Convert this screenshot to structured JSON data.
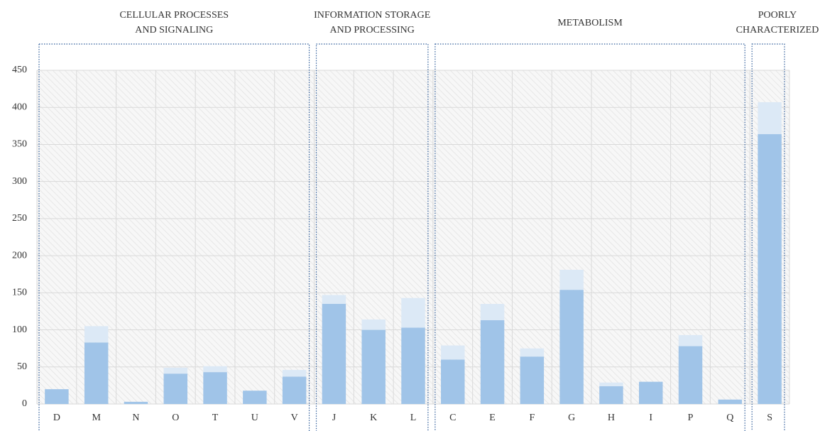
{
  "chart_data": {
    "type": "stacked_bar",
    "group_labels": [
      [
        "CELLULAR PROCESSES",
        "AND SIGNALING"
      ],
      [
        "INFORMATION STORAGE",
        "AND PROCESSING"
      ],
      [
        "METABOLISM"
      ],
      [
        "POORLY",
        "CHARACTERIZED"
      ]
    ],
    "categories": [
      "D",
      "M",
      "N",
      "O",
      "T",
      "U",
      "V",
      "J",
      "K",
      "L",
      "C",
      "E",
      "F",
      "G",
      "H",
      "I",
      "P",
      "Q",
      "S"
    ],
    "series": [
      {
        "color": "#a0c4e8",
        "values": [
          20,
          83,
          3,
          41,
          43,
          18,
          37,
          135,
          100,
          103,
          60,
          113,
          64,
          154,
          24,
          30,
          78,
          6,
          364
        ]
      },
      {
        "color": "#dce9f6",
        "values": [
          0,
          22,
          0,
          8,
          8,
          0,
          9,
          12,
          14,
          40,
          19,
          22,
          11,
          27,
          5,
          0,
          15,
          0,
          43
        ]
      }
    ],
    "ylim": [
      0,
      450
    ],
    "yticks": [
      0,
      50,
      100,
      150,
      200,
      250,
      300,
      350,
      400,
      450
    ],
    "grid": true
  }
}
